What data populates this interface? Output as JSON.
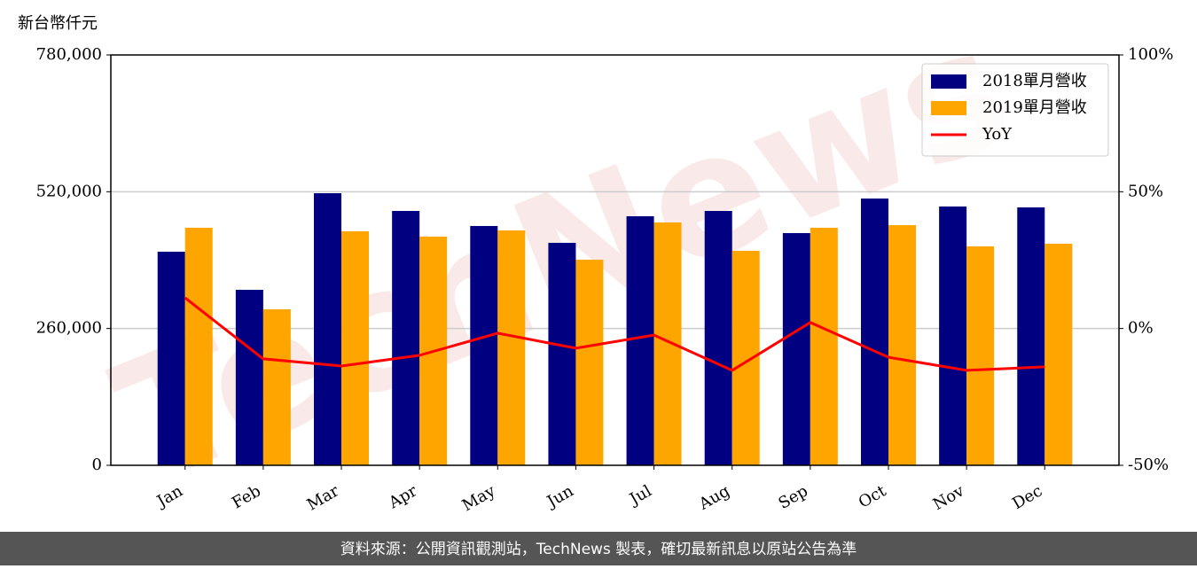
{
  "chart_data": {
    "type": "bar",
    "y_unit_label": "新台幣仟元",
    "watermark": "TechNews",
    "categories": [
      "Jan",
      "Feb",
      "Mar",
      "Apr",
      "May",
      "Jun",
      "Jul",
      "Aug",
      "Sep",
      "Oct",
      "Nov",
      "Dec"
    ],
    "series": [
      {
        "name": "2018單月營收",
        "color": "#000080",
        "values": [
          406000,
          333600,
          517200,
          483500,
          454900,
          422900,
          473400,
          483500,
          441400,
          507100,
          491900,
          490200
        ]
      },
      {
        "name": "2019單月營收",
        "color": "#ffa500",
        "values": [
          451500,
          296500,
          444800,
          434700,
          446400,
          390800,
          461600,
          407700,
          451500,
          456500,
          416100,
          421200
        ]
      },
      {
        "name": "YoY",
        "type": "line",
        "axis": "y2",
        "color": "#ff0000",
        "values": [
          11.2,
          -11.1,
          -13.7,
          -9.8,
          -1.7,
          -7.2,
          -2.4,
          -15.3,
          2.2,
          -10.5,
          -15.3,
          -14.0
        ]
      }
    ],
    "ylim": [
      0,
      780000
    ],
    "yticks": [
      0,
      {
        "value": 260000,
        "label": "260,000"
      },
      {
        "value": 520000,
        "label": "520,000"
      },
      {
        "value": 780000,
        "label": "780,000"
      }
    ],
    "y2lim": [
      -50,
      100
    ],
    "y2ticks": [
      {
        "value": -50,
        "label": "-50%"
      },
      {
        "value": 0,
        "label": "0%"
      },
      {
        "value": 50,
        "label": "50%"
      },
      {
        "value": 100,
        "label": "100%"
      }
    ],
    "grid": true,
    "legend": "upper right",
    "footer": "資料來源：公開資訊觀測站，TechNews 製表，確切最新訊息以原站公告為準"
  }
}
